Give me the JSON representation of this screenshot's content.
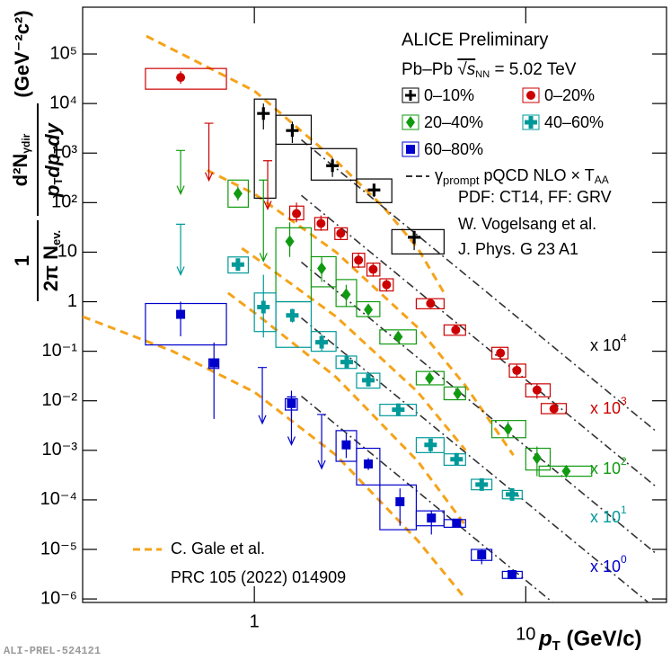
{
  "chart_data": {
    "type": "scatter",
    "title": "ALICE Preliminary",
    "system": "Pb–Pb",
    "sqrt_s": "√s",
    "nn": "NN",
    "energy": "= 5.02 TeV",
    "xlabel": {
      "p": "p",
      "sub": "T",
      "unit": "(GeV/c)"
    },
    "ylabel": {
      "one": "1",
      "den": "2π N",
      "den_sub": "ev.",
      "num": "d²N",
      "num_sub": "γdir",
      "p1": "p",
      "t1": "T",
      "dp": "dp",
      "t2": "T",
      "dy": "dy",
      "unit": "(GeV⁻²c²)"
    },
    "footer": "ALI-PREL-524121",
    "log_x": true,
    "log_y": true,
    "xlim": [
      0.233,
      33
    ],
    "ylim": [
      8.5e-07,
      880000
    ],
    "xticks": [
      1,
      10
    ],
    "yticks": [
      {
        "value": 1e-06,
        "label": "10⁻⁶"
      },
      {
        "value": 1e-05,
        "label": "10⁻⁵"
      },
      {
        "value": 0.0001,
        "label": "10⁻⁴"
      },
      {
        "value": 0.001,
        "label": "10⁻³"
      },
      {
        "value": 0.01,
        "label": "10⁻²"
      },
      {
        "value": 0.1,
        "label": "10⁻¹"
      },
      1,
      10,
      {
        "value": 100,
        "label": "10²"
      },
      {
        "value": 1000,
        "label": "10³"
      },
      {
        "value": 10000,
        "label": "10⁴"
      },
      {
        "value": 100000,
        "label": "10⁵"
      }
    ],
    "series": [
      {
        "name": "0–10%",
        "color": "#000000",
        "marker": "plus",
        "scale": "x 10",
        "scale_exp": "4",
        "x": [
          1.08,
          1.38,
          1.94,
          2.76,
          3.88
        ],
        "values": [
          6300,
          2850,
          556,
          180,
          20
        ],
        "err_low": [
          3000,
          1600,
          330,
          130,
          11
        ],
        "err_high": [
          10000,
          4300,
          800,
          240,
          27
        ],
        "x_low": [
          1.0,
          1.2,
          1.62,
          2.38,
          3.21
        ],
        "x_high": [
          1.2,
          1.62,
          2.38,
          3.21,
          5.0
        ],
        "sys_low": [
          123,
          1510,
          285,
          100,
          9.2
        ],
        "sys_high": [
          12300,
          5800,
          1230,
          300,
          28.5
        ],
        "limits": {
          "x": [],
          "values": [],
          "ends": []
        }
      },
      {
        "name": "0–20%",
        "color": "#cc0000",
        "marker": "circle",
        "scale": "x 10",
        "scale_exp": "3",
        "x": [
          0.535,
          1.43,
          1.76,
          2.08,
          2.42,
          2.74,
          3.07,
          4.46,
          5.52,
          8.07,
          9.27,
          11.0,
          12.7
        ],
        "values": [
          33600,
          60,
          38,
          24,
          6.9,
          4.5,
          2.2,
          0.92,
          0.27,
          0.092,
          0.041,
          0.0165,
          0.0069
        ],
        "err_low": [
          25000,
          40,
          27,
          18,
          4.8,
          3.2,
          1.6,
          0.75,
          0.22,
          0.07,
          0.03,
          0.011,
          0.0055
        ],
        "err_high": [
          45000,
          100,
          55,
          30,
          9.8,
          6,
          2.8,
          1.1,
          0.32,
          0.115,
          0.055,
          0.022,
          0.0085
        ],
        "x_low": [
          0.397,
          1.35,
          1.67,
          1.98,
          2.3,
          2.6,
          2.9,
          3.95,
          5.0,
          7.5,
          8.7,
          10.0,
          11.4
        ],
        "x_high": [
          0.789,
          1.52,
          1.86,
          2.2,
          2.55,
          2.9,
          3.25,
          5.0,
          6.0,
          8.6,
          10.0,
          12.3,
          14.1
        ],
        "sys_low": [
          19500,
          45,
          28,
          18,
          5,
          3.3,
          1.65,
          0.72,
          0.21,
          0.07,
          0.03,
          0.012,
          0.0055
        ],
        "sys_high": [
          51000,
          85,
          50,
          31,
          9.5,
          6,
          2.9,
          1.15,
          0.34,
          0.12,
          0.055,
          0.022,
          0.0088
        ],
        "limits": {
          "x": [
            0.68,
            1.12
          ],
          "values": [
            4000,
            700
          ],
          "ends": [
            280,
            74
          ]
        }
      },
      {
        "name": "20–40%",
        "color": "#109a10",
        "marker": "diamond",
        "scale": "x 10",
        "scale_exp": "2",
        "x": [
          0.87,
          1.35,
          1.77,
          2.18,
          2.63,
          3.39,
          4.42,
          5.61,
          8.6,
          11.0,
          14.1
        ],
        "values": [
          152,
          16.5,
          4.7,
          1.4,
          0.69,
          0.195,
          0.0285,
          0.014,
          0.0027,
          0.0007,
          0.00038
        ],
        "err_low": [
          110,
          8,
          2.5,
          0.8,
          0.55,
          0.15,
          0.022,
          0.011,
          0.0018,
          0.0003,
          0.00028
        ],
        "err_high": [
          210,
          40,
          8,
          2.2,
          0.85,
          0.25,
          0.036,
          0.018,
          0.0038,
          0.0012,
          0.0005
        ],
        "x_low": [
          0.8,
          1.2,
          1.62,
          2.0,
          2.38,
          2.9,
          3.95,
          5.0,
          7.5,
          10.0,
          11.2
        ],
        "x_high": [
          0.95,
          1.62,
          2.0,
          2.38,
          2.9,
          3.95,
          5.0,
          6.0,
          10.0,
          12.3,
          17.5
        ],
        "sys_low": [
          81,
          1.0,
          2.0,
          0.8,
          0.5,
          0.14,
          0.021,
          0.0105,
          0.0018,
          0.0004,
          0.0003
        ],
        "sys_high": [
          285,
          31,
          8.1,
          2.8,
          1.0,
          0.27,
          0.039,
          0.019,
          0.004,
          0.0011,
          0.00048
        ],
        "limits": {
          "x": [
            0.535,
            1.08
          ],
          "values": [
            1130,
            285
          ],
          "ends": [
            150,
            6.6
          ]
        }
      },
      {
        "name": "40–60%",
        "color": "#009999",
        "marker": "cross",
        "scale": "x 10",
        "scale_exp": "1",
        "x": [
          0.87,
          1.08,
          1.38,
          1.77,
          2.19,
          2.63,
          3.39,
          4.46,
          5.56,
          6.88,
          8.9
        ],
        "values": [
          5.6,
          0.78,
          0.53,
          0.152,
          0.0605,
          0.026,
          0.0066,
          0.00129,
          0.00066,
          0.000204,
          0.000129
        ],
        "err_low": [
          4.3,
          0.19,
          0.38,
          0.1,
          0.045,
          0.02,
          0.0055,
          0.0009,
          0.00055,
          0.00017,
          0.00011
        ],
        "err_high": [
          7.2,
          3.5,
          0.72,
          0.22,
          0.08,
          0.033,
          0.008,
          0.0017,
          0.0008,
          0.00024,
          0.00015
        ],
        "x_low": [
          0.8,
          1.0,
          1.2,
          1.62,
          2.0,
          2.38,
          2.9,
          3.95,
          5.0,
          6.3,
          8.2
        ],
        "x_high": [
          0.95,
          1.2,
          1.62,
          2.0,
          2.38,
          2.9,
          3.95,
          5.0,
          6.0,
          7.5,
          9.7
        ],
        "sys_low": [
          3.8,
          0.25,
          0.12,
          0.1,
          0.045,
          0.018,
          0.005,
          0.0009,
          0.0005,
          0.00016,
          0.000105
        ],
        "sys_high": [
          8,
          1.5,
          1.0,
          0.25,
          0.08,
          0.036,
          0.0085,
          0.0018,
          0.00085,
          0.00026,
          0.000155
        ],
        "limits": {
          "x": [
            0.535
          ],
          "values": [
            36.6
          ],
          "ends": [
            3.5
          ]
        }
      },
      {
        "name": "60–80%",
        "color": "#0000cc",
        "marker": "square",
        "scale": "x 10",
        "scale_exp": "0",
        "x": [
          0.535,
          0.71,
          1.37,
          2.18,
          2.63,
          3.44,
          4.49,
          5.56,
          6.88,
          8.9
        ],
        "values": [
          0.556,
          0.058,
          0.0088,
          0.00129,
          0.00053,
          9.2e-05,
          4.3e-05,
          3.4e-05,
          7.8e-06,
          3.1e-06
        ],
        "err_low": [
          0.2,
          0.0043,
          0.0045,
          0.0007,
          0.0004,
          3e-05,
          2e-05,
          2.9e-05,
          5e-06,
          2.5e-06
        ],
        "err_high": [
          1.0,
          0.15,
          0.016,
          0.0022,
          0.0007,
          0.00017,
          6e-05,
          4e-05,
          1e-05,
          3.8e-06
        ],
        "x_low": [
          0.397,
          0.68,
          1.3,
          2.0,
          2.38,
          2.9,
          3.95,
          5.0,
          6.3,
          8.2
        ],
        "x_high": [
          0.789,
          0.74,
          1.44,
          2.38,
          2.9,
          3.95,
          5.0,
          6.0,
          7.5,
          9.7
        ],
        "sys_low": [
          0.134,
          0.045,
          0.0065,
          0.0006,
          0.0002,
          2.5e-05,
          3e-05,
          2.8e-05,
          6e-06,
          2.6e-06
        ],
        "sys_high": [
          0.92,
          0.07,
          0.011,
          0.0025,
          0.0011,
          0.0002,
          6e-05,
          4e-05,
          1e-05,
          3.6e-06
        ],
        "limits": {
          "x": [
            1.07,
            1.37,
            1.77
          ],
          "values": [
            0.047,
            0.012,
            0.0053
          ],
          "ends": [
            0.0035,
            0.0013,
            0.00043
          ]
        }
      }
    ],
    "theory": [
      {
        "name": "C. Gale et al.",
        "note": "PRC 105 (2022) 014909",
        "color": "#f5a31a",
        "style": "dashed",
        "curves": [
          {
            "x": [
              0.4,
              1,
              2,
              3,
              4,
              5
            ],
            "values": [
              230000,
              18000,
              700,
              80,
              12,
              1.5
            ]
          },
          {
            "x": [
              0.67,
              1,
              2,
              4,
              6,
              9
            ],
            "values": [
              450,
              150,
              10,
              0.3,
              0.02,
              0.0008
            ]
          },
          {
            "x": [
              0.9,
              1,
              2,
              4,
              6
            ],
            "values": [
              12,
              8,
              0.5,
              0.015,
              0.001
            ]
          },
          {
            "x": [
              0.8,
              1,
              2,
              4,
              6
            ],
            "values": [
              1.5,
              0.6,
              0.03,
              0.0006,
              3e-05
            ]
          },
          {
            "x": [
              0.233,
              0.5,
              1,
              2,
              4,
              6
            ],
            "values": [
              0.5,
              0.1,
              0.015,
              0.0008,
              1.5e-05,
              1e-06
            ]
          }
        ]
      },
      {
        "name": "γ",
        "name_sub": "prompt",
        "name_rest": "pQCD NLO × T",
        "name_sub2": "AA",
        "notes": [
          "PDF: CT14, FF: GRV",
          "W. Vogelsang et al.",
          "J. Phys. G 23 A1"
        ],
        "color": "#333333",
        "style": "dashdot",
        "curves": [
          {
            "x": [
              1.49,
              30
            ],
            "values": [
              1850,
              0.0025
            ]
          },
          {
            "x": [
              1.49,
              30
            ],
            "values": [
              140,
              0.00019
            ]
          },
          {
            "x": [
              1.49,
              30
            ],
            "values": [
              6.3,
              8.5e-06
            ]
          },
          {
            "x": [
              1.49,
              30
            ],
            "values": [
              0.47,
              6.5e-07
            ]
          },
          {
            "x": [
              1.49,
              30
            ],
            "values": [
              0.0124,
              1.7e-08
            ]
          }
        ]
      }
    ]
  }
}
